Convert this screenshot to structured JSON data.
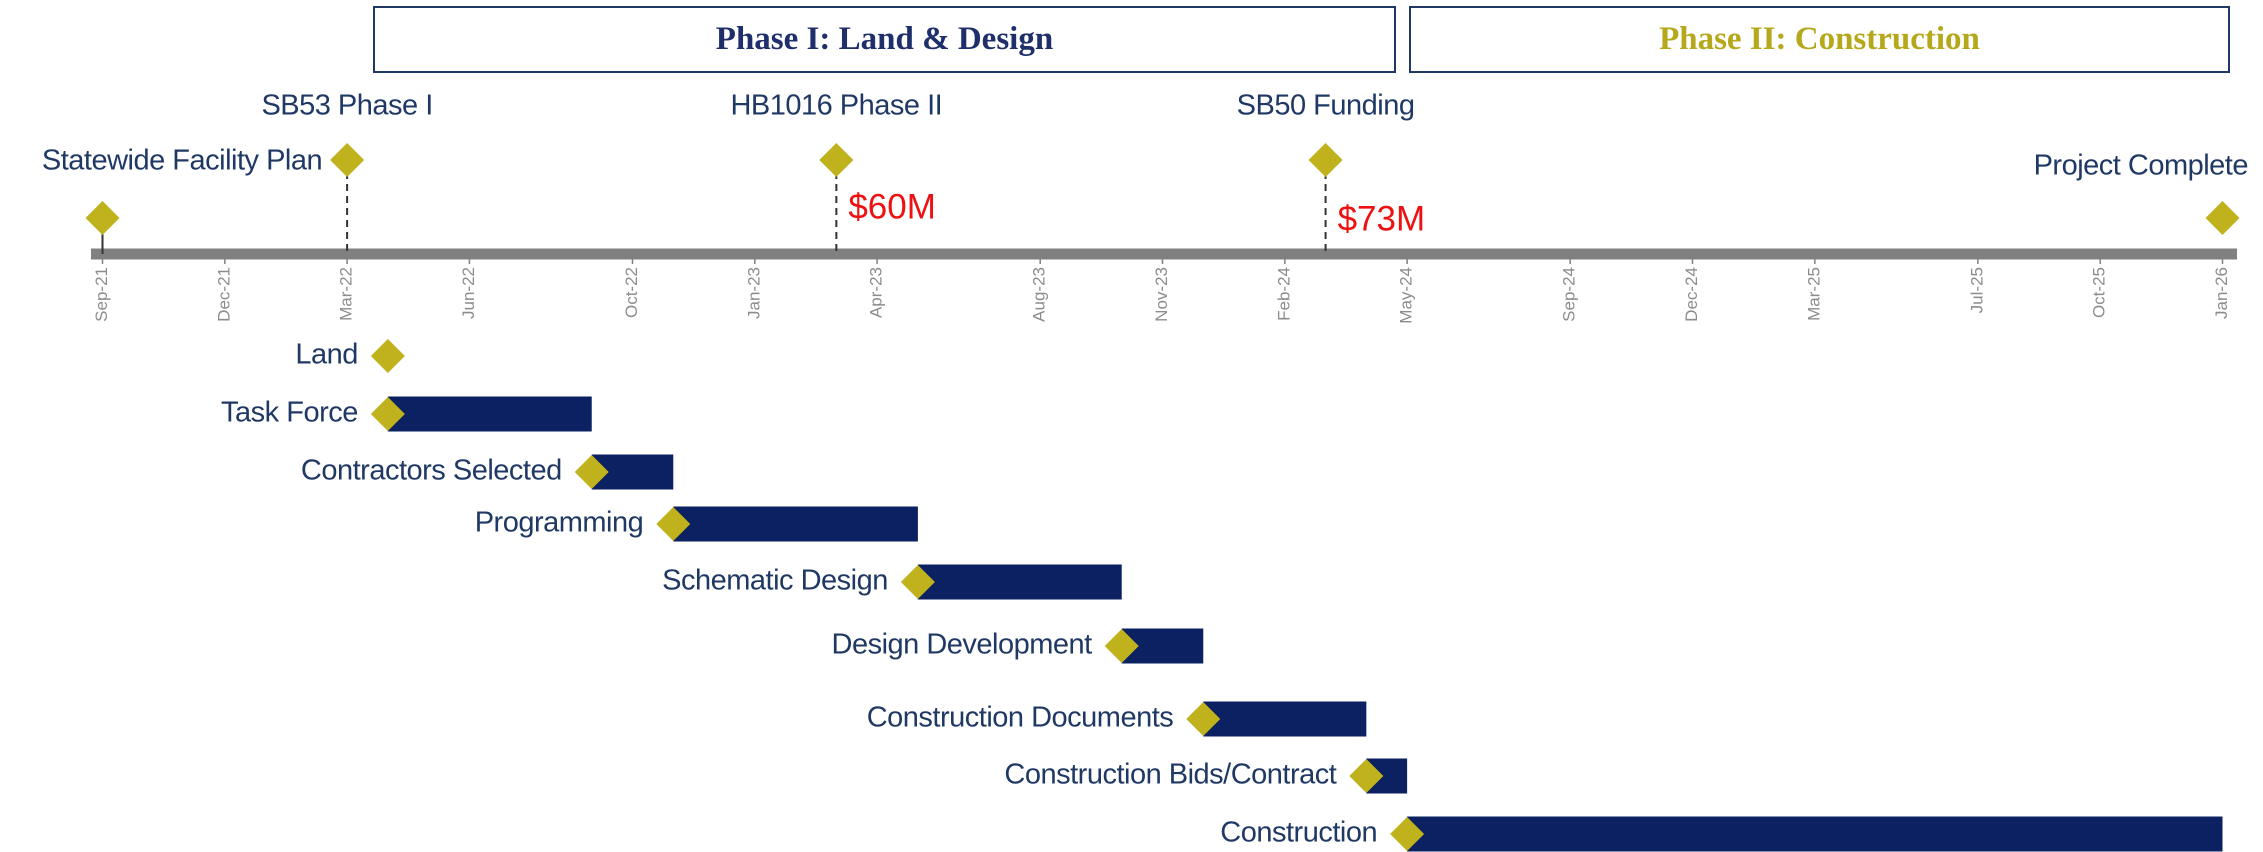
{
  "chart_data": {
    "type": "gantt",
    "phases": [
      {
        "label": "Phase I: Land & Design",
        "color": "#1f2f6b"
      },
      {
        "label": "Phase II: Construction",
        "color": "#b5a81a"
      }
    ],
    "xlim": [
      "2021-09",
      "2026-01"
    ],
    "xticks": [
      {
        "value": "2021-09",
        "label": "Sep-21"
      },
      {
        "value": "2021-12",
        "label": "Dec-21"
      },
      {
        "value": "2022-03",
        "label": "Mar-22"
      },
      {
        "value": "2022-06",
        "label": "Jun-22"
      },
      {
        "value": "2022-10",
        "label": "Oct-22"
      },
      {
        "value": "2023-01",
        "label": "Jan-23"
      },
      {
        "value": "2023-04",
        "label": "Apr-23"
      },
      {
        "value": "2023-08",
        "label": "Aug-23"
      },
      {
        "value": "2023-11",
        "label": "Nov-23"
      },
      {
        "value": "2024-02",
        "label": "Feb-24"
      },
      {
        "value": "2024-05",
        "label": "May-24"
      },
      {
        "value": "2024-09",
        "label": "Sep-24"
      },
      {
        "value": "2024-12",
        "label": "Dec-24"
      },
      {
        "value": "2025-03",
        "label": "Mar-25"
      },
      {
        "value": "2025-07",
        "label": "Jul-25"
      },
      {
        "value": "2025-10",
        "label": "Oct-25"
      },
      {
        "value": "2026-01",
        "label": "Jan-26"
      }
    ],
    "milestones": [
      {
        "name": "Statewide Facility Plan",
        "date": "2021-09"
      },
      {
        "name": "SB53 Phase I",
        "date": "2022-03"
      },
      {
        "name": "HB1016 Phase II",
        "date": "2023-03",
        "annotation": "$60M"
      },
      {
        "name": "SB50 Funding",
        "date": "2024-03",
        "annotation": "$73M"
      },
      {
        "name": "Project Complete",
        "date": "2026-01"
      }
    ],
    "tasks": [
      {
        "name": "Land",
        "start": "2022-04"
      },
      {
        "name": "Task Force",
        "start": "2022-04",
        "end": "2022-09"
      },
      {
        "name": "Contractors Selected",
        "start": "2022-09",
        "end": "2022-11"
      },
      {
        "name": "Programming",
        "start": "2022-11",
        "end": "2023-05"
      },
      {
        "name": "Schematic Design",
        "start": "2023-05",
        "end": "2023-10"
      },
      {
        "name": "Design Development",
        "start": "2023-10",
        "end": "2023-12"
      },
      {
        "name": "Construction Documents",
        "start": "2023-12",
        "end": "2024-04"
      },
      {
        "name": "Construction Bids/Contract",
        "start": "2024-04",
        "end": "2024-05"
      },
      {
        "name": "Construction",
        "start": "2024-05",
        "end": "2026-01"
      }
    ],
    "colors": {
      "diamond": "#bfb21d",
      "bar": "#0b2161",
      "axis": "#808080",
      "text": "#1f3864",
      "annotation": "#ee1111"
    }
  }
}
